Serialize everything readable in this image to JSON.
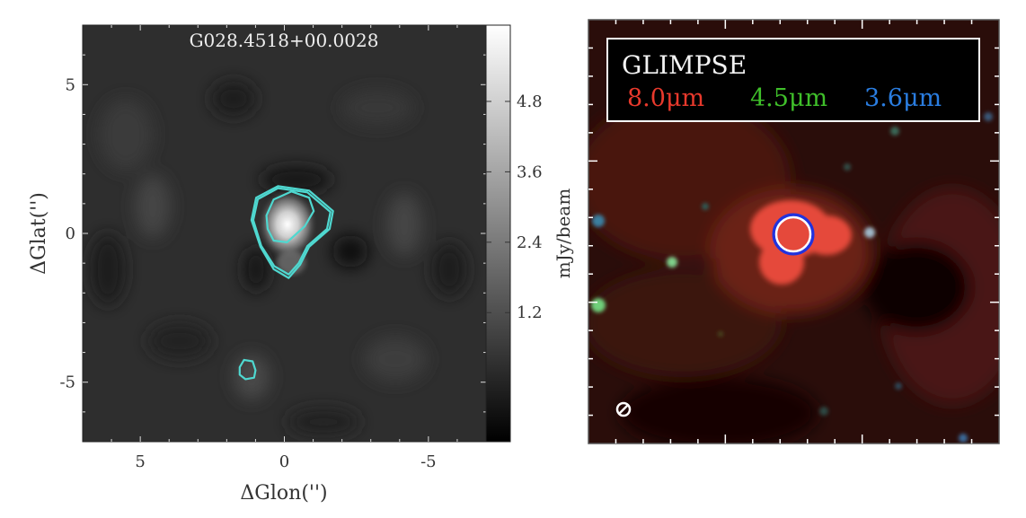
{
  "chart_data": [
    {
      "type": "heatmap",
      "title": "G028.4518+00.0028",
      "xlabel": "ΔGlon('')",
      "ylabel": "ΔGlat('')",
      "xlim": [
        7,
        -7
      ],
      "ylim": [
        -7,
        7
      ],
      "xticks": [
        {
          "value": 5,
          "label": "5"
        },
        {
          "value": 0,
          "label": "0"
        },
        {
          "value": -5,
          "label": "-5"
        }
      ],
      "yticks": [
        {
          "value": 5,
          "label": "5"
        },
        {
          "value": 0,
          "label": "0"
        },
        {
          "value": -5,
          "label": "-5"
        }
      ],
      "colorbar": {
        "label": "mJy/beam",
        "range": [
          -1.0,
          6.1
        ],
        "ticks": [
          {
            "value": 4.8,
            "label": "4.8"
          },
          {
            "value": 3.6,
            "label": "3.6"
          },
          {
            "value": 2.4,
            "label": "2.4"
          },
          {
            "value": 1.2,
            "label": "1.2"
          }
        ],
        "colormap": "gray"
      },
      "peak": {
        "x": -0.1,
        "y": 0.45,
        "value": 5.6
      },
      "contour_color": "#4fd8d0",
      "contours": [
        {
          "level": "outer",
          "points": [
            [
              1.14,
              0.45
            ],
            [
              0.98,
              1.2
            ],
            [
              0.22,
              1.59
            ],
            [
              -0.86,
              1.44
            ],
            [
              -1.69,
              0.75
            ],
            [
              -1.57,
              0.15
            ],
            [
              -0.86,
              -0.45
            ],
            [
              -0.55,
              -1.05
            ],
            [
              -0.15,
              -1.5
            ],
            [
              0.37,
              -1.2
            ],
            [
              0.83,
              -0.45
            ]
          ]
        },
        {
          "level": "outer-2",
          "points": [
            [
              1.08,
              0.45
            ],
            [
              0.92,
              1.15
            ],
            [
              0.22,
              1.52
            ],
            [
              -0.8,
              1.38
            ],
            [
              -1.6,
              0.72
            ],
            [
              -1.48,
              0.15
            ],
            [
              -0.8,
              -0.42
            ],
            [
              -0.5,
              -1.0
            ],
            [
              -0.15,
              -1.38
            ],
            [
              0.35,
              -1.1
            ],
            [
              0.8,
              -0.42
            ]
          ]
        },
        {
          "level": "inner",
          "points": [
            [
              0.62,
              0.6
            ],
            [
              0.37,
              1.14
            ],
            [
              -0.25,
              1.41
            ],
            [
              -0.86,
              1.2
            ],
            [
              -1.02,
              0.75
            ],
            [
              -0.71,
              0.24
            ],
            [
              -0.09,
              -0.3
            ],
            [
              0.37,
              -0.24
            ],
            [
              0.58,
              0.15
            ]
          ]
        },
        {
          "level": "secondary",
          "points": [
            [
              1.55,
              -4.5
            ],
            [
              1.4,
              -4.25
            ],
            [
              1.1,
              -4.3
            ],
            [
              1.0,
              -4.6
            ],
            [
              1.05,
              -4.85
            ],
            [
              1.35,
              -4.9
            ],
            [
              1.55,
              -4.75
            ]
          ]
        }
      ]
    },
    {
      "type": "image",
      "legend": {
        "title": "GLIMPSE",
        "bands": [
          {
            "label": "8.0μm",
            "color": "#e8392c"
          },
          {
            "label": "4.5μm",
            "color": "#3fbf2a"
          },
          {
            "label": "3.6μm",
            "color": "#2a7de0"
          }
        ]
      },
      "marker": {
        "x": 0,
        "y": 0,
        "color": "#ffffff",
        "edge": "#2233dd"
      },
      "beam_symbol": "⊘"
    }
  ]
}
